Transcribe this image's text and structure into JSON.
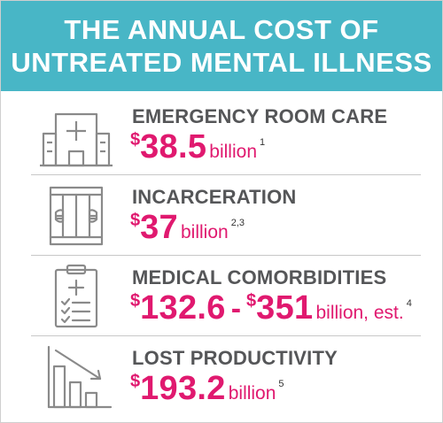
{
  "header": {
    "line1": "THE ANNUAL COST OF",
    "line2": "UNTREATED MENTAL ILLNESS"
  },
  "colors": {
    "header_bg": "#48b6c6",
    "accent": "#e0196f",
    "label": "#555658",
    "icon": "#8a8a8a"
  },
  "items": [
    {
      "icon": "hospital-building-icon",
      "label": "EMERGENCY ROOM CARE",
      "dollar": "$",
      "amount": "38.5",
      "unit": "billion",
      "ref": "1"
    },
    {
      "icon": "jail-bars-hands-icon",
      "label": "INCARCERATION",
      "dollar": "$",
      "amount": "37",
      "unit": "billion",
      "ref": "2,3"
    },
    {
      "icon": "medical-clipboard-icon",
      "label": "MEDICAL COMORBIDITIES",
      "dollar": "$",
      "amount": "132.6",
      "dash": "-",
      "dollar2": "$",
      "amount2": "351",
      "unit": "billion, est.",
      "ref": "4"
    },
    {
      "icon": "declining-bar-chart-icon",
      "label": "LOST PRODUCTIVITY",
      "dollar": "$",
      "amount": "193.2",
      "unit": "billion",
      "ref": "5"
    }
  ]
}
